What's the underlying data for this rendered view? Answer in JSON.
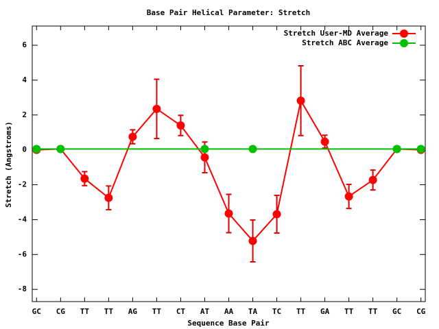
{
  "chart_data": {
    "type": "line",
    "title": "Base Pair Helical Parameter: Stretch",
    "x_label": "Sequence Base Pair",
    "y_label": "Stretch (Angstroms)",
    "categories": [
      "GC",
      "CG",
      "TT",
      "TT",
      "AG",
      "TT",
      "CT",
      "AT",
      "AA",
      "TA",
      "TC",
      "TT",
      "GA",
      "TT",
      "TT",
      "GC",
      "CG"
    ],
    "series": [
      {
        "name": "Stretch User-MD Average",
        "color": "#ff0000",
        "errorbar_color": "#dd0000",
        "values": [
          0,
          0.05,
          -1.65,
          -2.75,
          0.75,
          2.35,
          1.4,
          -0.43,
          -3.65,
          -5.22,
          -3.69,
          2.82,
          0.47,
          -2.67,
          -1.73,
          0.05,
          0
        ],
        "errors": [
          0,
          0,
          0.4,
          0.68,
          0.4,
          1.7,
          0.58,
          0.88,
          1.1,
          1.2,
          1.08,
          2.0,
          0.37,
          0.69,
          0.57,
          0,
          0
        ]
      },
      {
        "name": "Stretch ABC Average",
        "color": "#00c000",
        "values": [
          0.05,
          0.05,
          null,
          null,
          null,
          null,
          null,
          0.05,
          null,
          0.05,
          null,
          null,
          null,
          null,
          null,
          0.05,
          0.05
        ],
        "line_values": [
          0.05,
          0.05,
          0.05,
          0.05,
          0.05,
          0.05,
          0.05,
          0.05,
          0.05,
          0.05,
          0.05,
          0.05,
          0.05,
          0.05,
          0.05,
          0.05,
          0.05
        ]
      }
    ],
    "ylim": [
      -8.7,
      7.1
    ],
    "yticks": [
      -8,
      -6,
      -4,
      -2,
      0,
      2,
      4,
      6
    ],
    "legend": "upper right"
  }
}
